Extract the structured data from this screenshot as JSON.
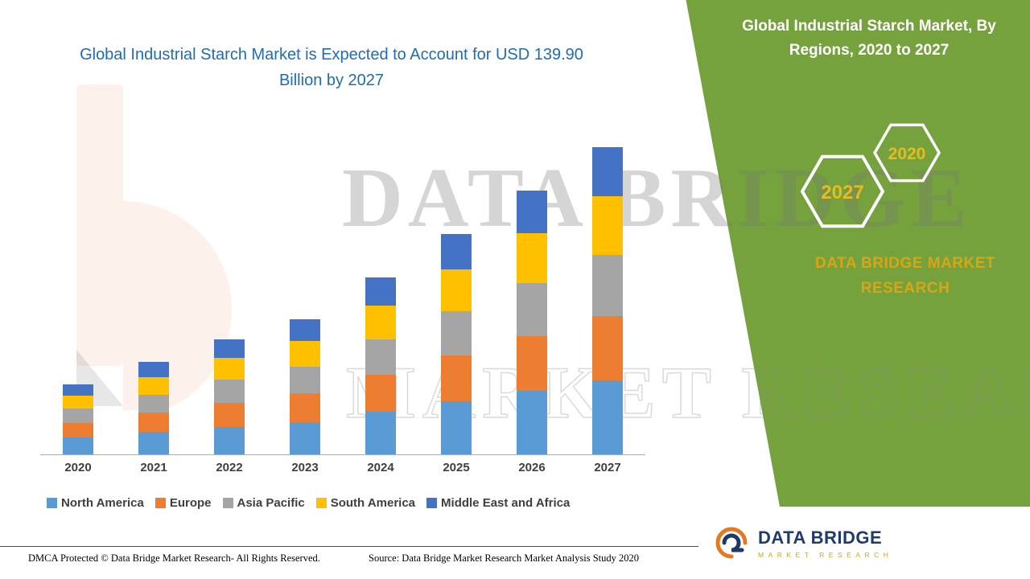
{
  "main_title": {
    "text": "Global Industrial Starch Market is Expected to Account for USD 139.90 Billion by 2027"
  },
  "side_panel": {
    "title": "Global Industrial Starch Market, By Regions, 2020 to 2027",
    "hexagon_years": [
      "2027",
      "2020"
    ],
    "brand_text": "DATA BRIDGE MARKET RESEARCH"
  },
  "colors": {
    "panel_green": "#76A23E",
    "title_blue": "#1F6CB5",
    "gold_accent": "#E3AF1B",
    "logo_navy": "#1E3A6E"
  },
  "chart_data": {
    "type": "bar",
    "stacked": true,
    "title": "Global Industrial Starch Market is Expected to Account for USD 139.90 Billion by 2027",
    "unit": "USD Billion",
    "categories": [
      "2020",
      "2021",
      "2022",
      "2023",
      "2024",
      "2025",
      "2026",
      "2027"
    ],
    "series": [
      {
        "name": "North America",
        "color": "#5B9BD5",
        "values": [
          7.7,
          10.1,
          12.6,
          14.8,
          19.3,
          24.1,
          28.8,
          33.6
        ]
      },
      {
        "name": "Europe",
        "color": "#ED7D31",
        "values": [
          6.7,
          8.8,
          11.0,
          12.9,
          16.9,
          21.1,
          25.2,
          29.4
        ]
      },
      {
        "name": "Asia Pacific",
        "color": "#A5A5A5",
        "values": [
          6.4,
          8.4,
          10.5,
          12.3,
          16.1,
          20.0,
          24.0,
          28.0
        ]
      },
      {
        "name": "South America",
        "color": "#FFC000",
        "values": [
          6.1,
          8.0,
          10.0,
          11.7,
          15.3,
          19.1,
          22.8,
          26.6
        ]
      },
      {
        "name": "Middle East and Africa",
        "color": "#4472C4",
        "values": [
          5.1,
          6.7,
          8.4,
          9.8,
          12.9,
          16.0,
          19.2,
          22.3
        ]
      }
    ],
    "totals_usd_billion_estimated": [
      32.0,
      42.0,
      52.5,
      61.5,
      80.5,
      100.3,
      120.0,
      139.9
    ],
    "ylim": [
      0,
      140
    ],
    "grid": false,
    "y_axis_visible": false,
    "legend_position": "bottom"
  },
  "watermark": {
    "line1": "DATA BRIDGE",
    "line2": "MARKET RESEARCH"
  },
  "footer": {
    "dmca": "DMCA Protected © Data Bridge Market Research- All Rights Reserved.",
    "source": "Source: Data Bridge Market Research Market Analysis Study 2020"
  },
  "logo": {
    "title": "DATA BRIDGE",
    "subtitle": "MARKET RESEARCH"
  }
}
